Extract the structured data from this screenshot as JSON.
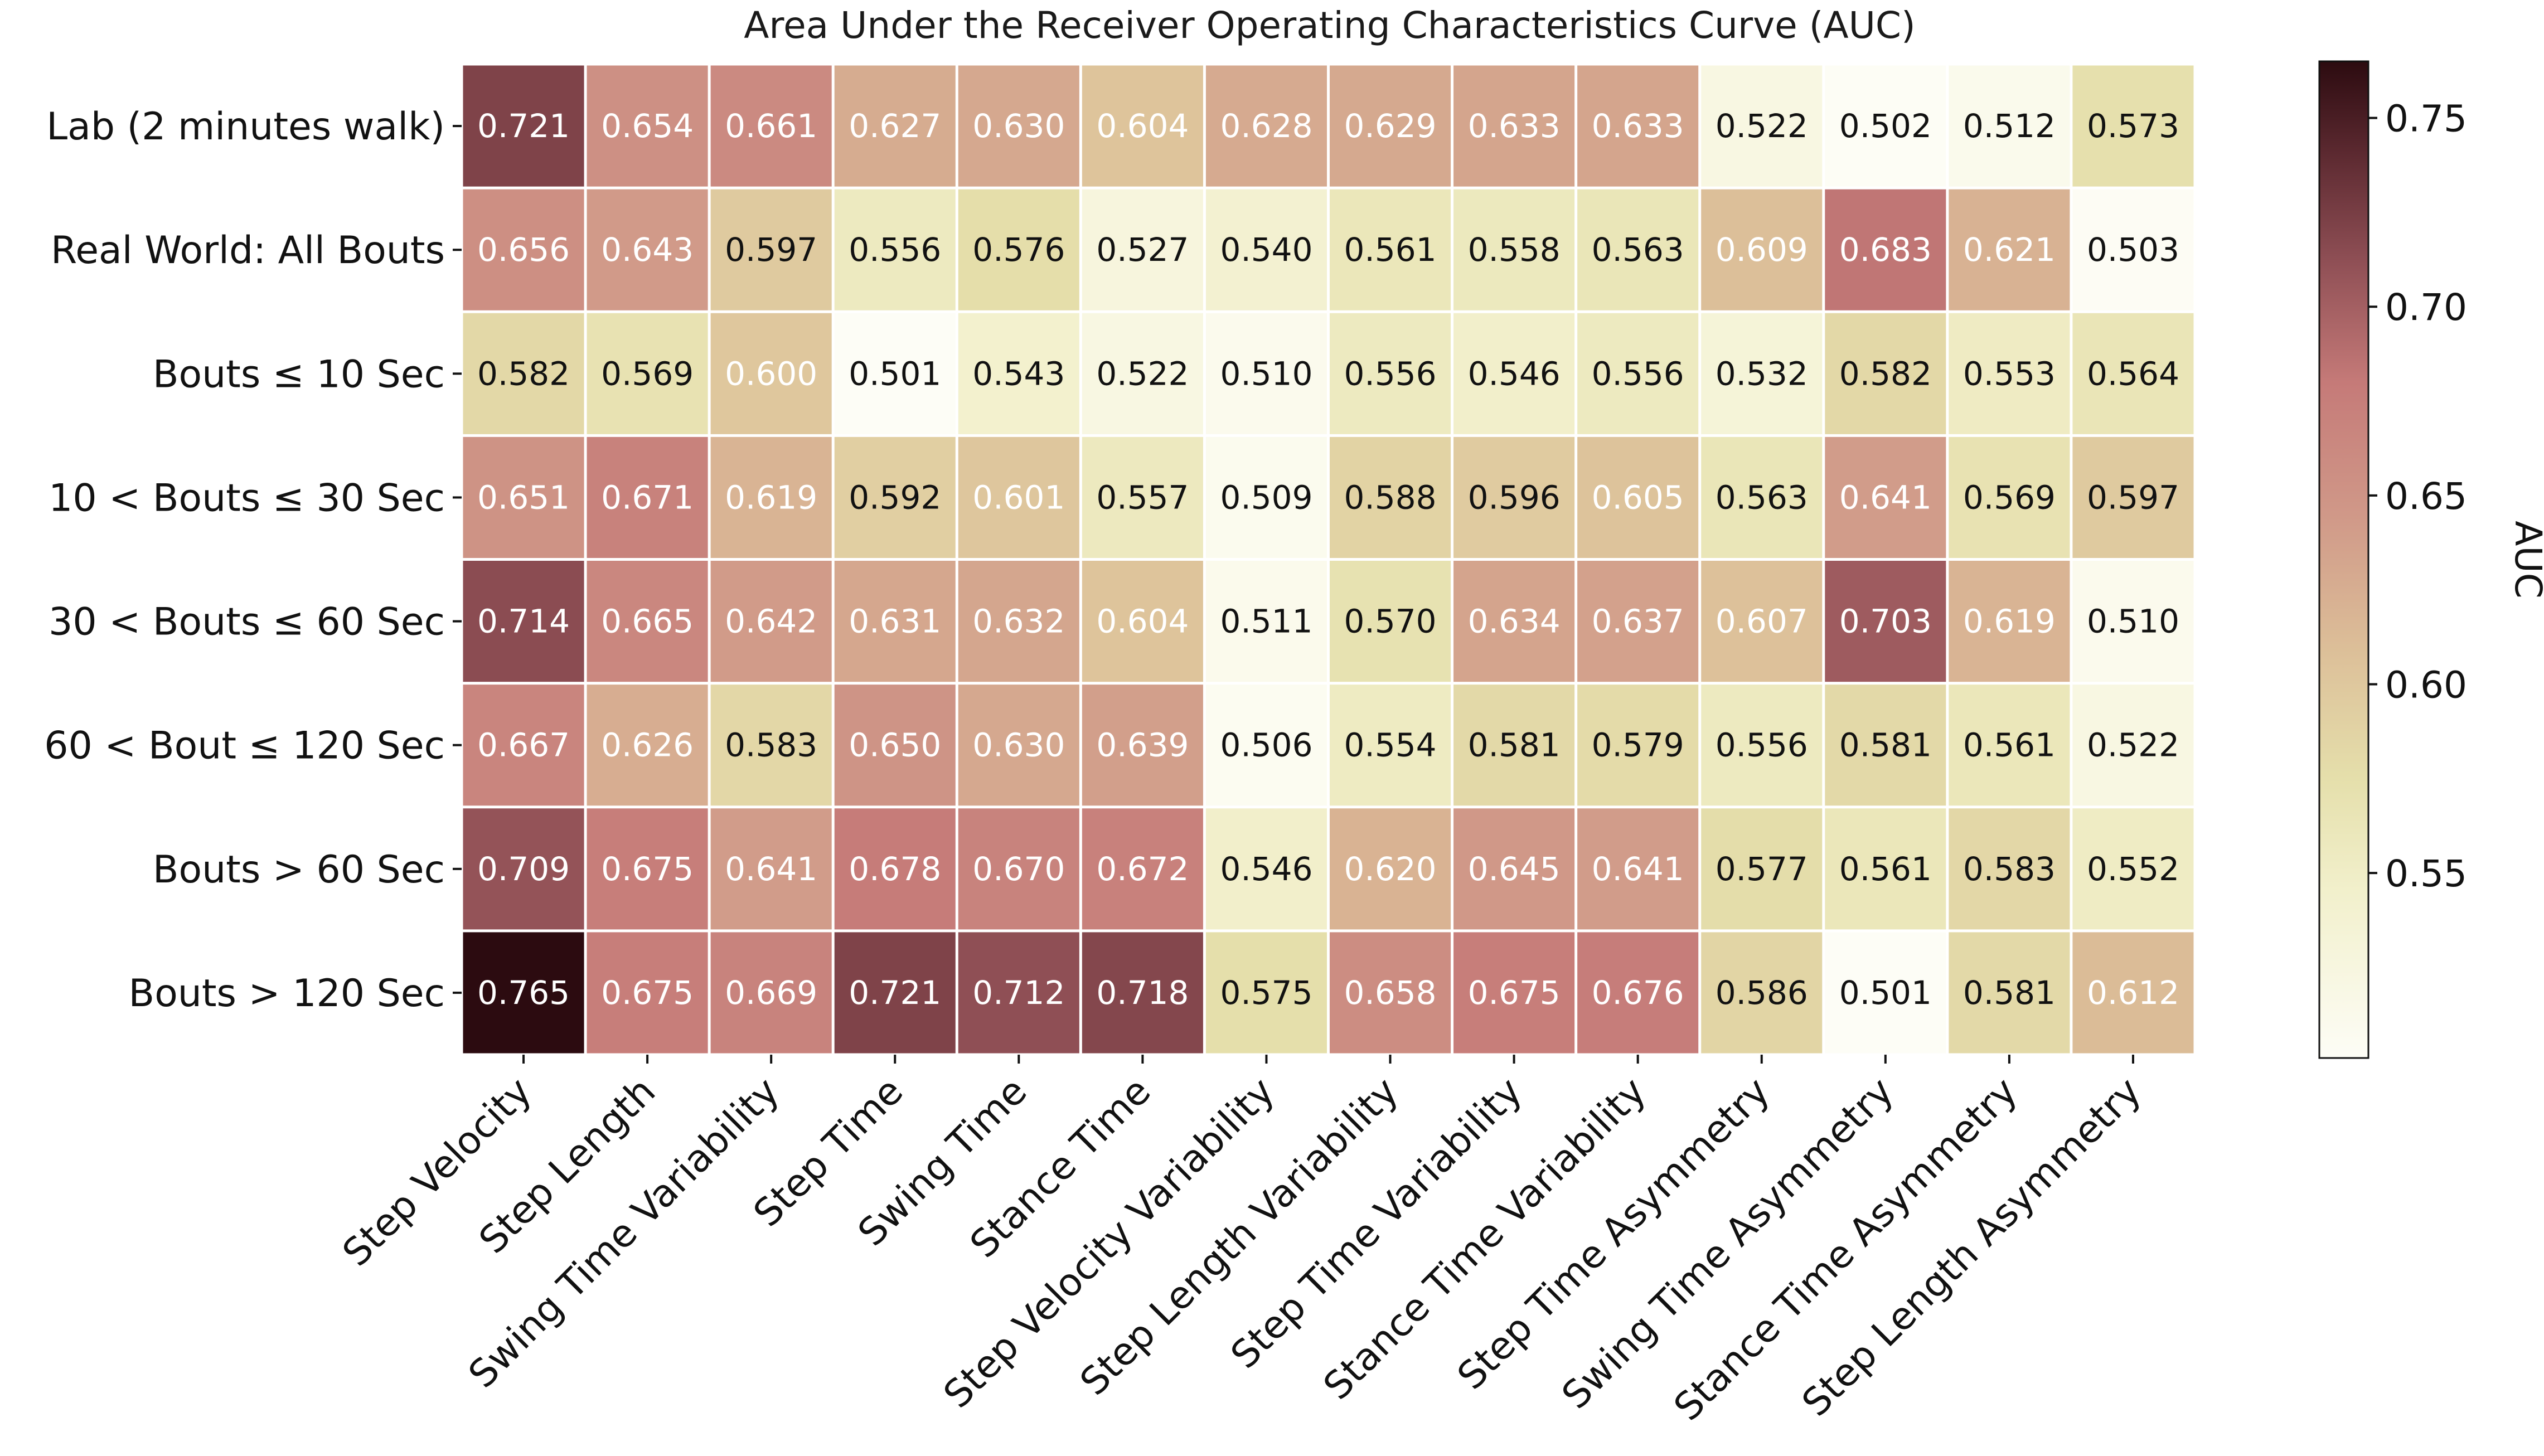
{
  "chart_data": {
    "type": "heatmap",
    "title": "Area Under the Receiver Operating Characteristics Curve (AUC)",
    "rows": [
      "Lab (2 minutes walk)",
      "Real World: All Bouts",
      "Bouts ≤ 10 Sec",
      "10 < Bouts ≤ 30 Sec",
      "30 < Bouts ≤ 60 Sec",
      "60 < Bout ≤ 120 Sec",
      "Bouts > 60 Sec",
      "Bouts > 120 Sec"
    ],
    "columns": [
      "Step Velocity",
      "Step Length",
      "Swing Time Variability",
      "Step Time",
      "Swing Time",
      "Stance Time",
      "Step Velocity Variability",
      "Step Length Variability",
      "Step Time Variability",
      "Stance Time Variability",
      "Step Time Asymmetry",
      "Swing Time Asymmetry",
      "Stance Time Asymmetry",
      "Step Length Asymmetry"
    ],
    "values": [
      [
        0.721,
        0.654,
        0.661,
        0.627,
        0.63,
        0.604,
        0.628,
        0.629,
        0.633,
        0.633,
        0.522,
        0.502,
        0.512,
        0.573
      ],
      [
        0.656,
        0.643,
        0.597,
        0.556,
        0.576,
        0.527,
        0.54,
        0.561,
        0.558,
        0.563,
        0.609,
        0.683,
        0.621,
        0.503
      ],
      [
        0.582,
        0.569,
        0.6,
        0.501,
        0.543,
        0.522,
        0.51,
        0.556,
        0.546,
        0.556,
        0.532,
        0.582,
        0.553,
        0.564
      ],
      [
        0.651,
        0.671,
        0.619,
        0.592,
        0.601,
        0.557,
        0.509,
        0.588,
        0.596,
        0.605,
        0.563,
        0.641,
        0.569,
        0.597
      ],
      [
        0.714,
        0.665,
        0.642,
        0.631,
        0.632,
        0.604,
        0.511,
        0.57,
        0.634,
        0.637,
        0.607,
        0.703,
        0.619,
        0.51
      ],
      [
        0.667,
        0.626,
        0.583,
        0.65,
        0.63,
        0.639,
        0.506,
        0.554,
        0.581,
        0.579,
        0.556,
        0.581,
        0.561,
        0.522
      ],
      [
        0.709,
        0.675,
        0.641,
        0.678,
        0.67,
        0.672,
        0.546,
        0.62,
        0.645,
        0.641,
        0.577,
        0.561,
        0.583,
        0.552
      ],
      [
        0.765,
        0.675,
        0.669,
        0.721,
        0.712,
        0.718,
        0.575,
        0.658,
        0.675,
        0.676,
        0.586,
        0.501,
        0.581,
        0.612
      ]
    ],
    "colorbar": {
      "label": "AUC",
      "range": [
        0.501,
        0.765
      ],
      "ticks": [
        0.55,
        0.6,
        0.65,
        0.7,
        0.75
      ],
      "tick_labels": [
        "0.55",
        "0.60",
        "0.65",
        "0.70",
        "0.75"
      ],
      "colormap": [
        {
          "v": 0.501,
          "color": "#fdfdf6"
        },
        {
          "v": 0.545,
          "color": "#f2f0cc"
        },
        {
          "v": 0.575,
          "color": "#e5dfab"
        },
        {
          "v": 0.61,
          "color": "#dcbe98"
        },
        {
          "v": 0.645,
          "color": "#d09888"
        },
        {
          "v": 0.68,
          "color": "#c57a78"
        },
        {
          "v": 0.712,
          "color": "#8f4f55"
        },
        {
          "v": 0.74,
          "color": "#5d2a31"
        },
        {
          "v": 0.765,
          "color": "#2c0b10"
        }
      ]
    },
    "text_colors": {
      "light": "#ffffff",
      "dark": "#111111"
    },
    "cell_text_threshold": 0.6,
    "cell_border_color": "#ffffff"
  }
}
